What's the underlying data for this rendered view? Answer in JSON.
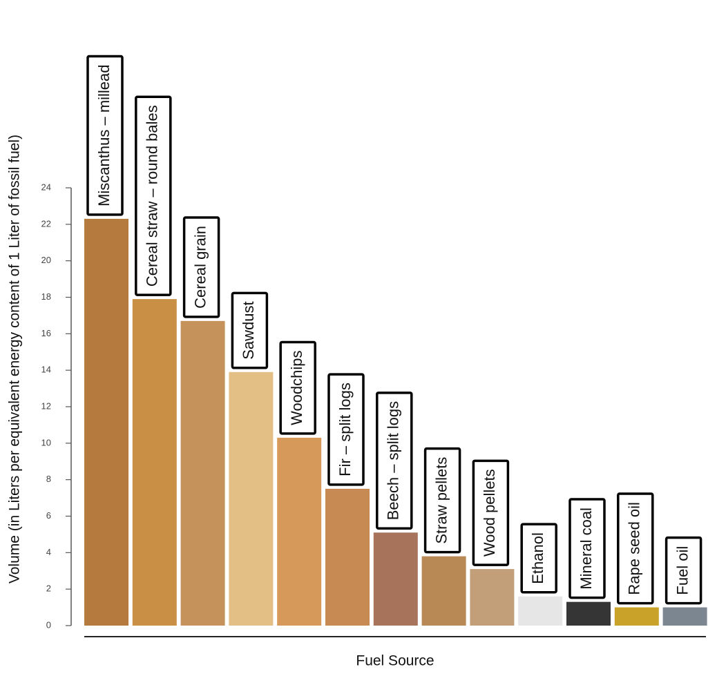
{
  "chart_data": {
    "type": "bar",
    "y_label": "Volume (in Liters per equivalent energy content of 1 Liter of fossil fuel)",
    "x_label": "Fuel Source",
    "categories": [
      "Miscanthus – millead",
      "Cereal straw – round bales",
      "Cereal grain",
      "Sawdust",
      "Woodchips",
      "Fir – split logs",
      "Beech – split logs",
      "Straw pellets",
      "Wood pellets",
      "Ethanol",
      "Mineral coal",
      "Rape seed oil",
      "Fuel oil"
    ],
    "values": [
      22.3,
      17.9,
      16.7,
      13.9,
      10.3,
      7.5,
      5.1,
      3.8,
      3.1,
      1.6,
      1.3,
      1.0,
      1.0
    ],
    "colors": [
      "#b47a3e",
      "#c98f45",
      "#c6925c",
      "#e4bf85",
      "#d7995a",
      "#c78a52",
      "#a7735a",
      "#b88955",
      "#c29f79",
      "#e6e6e6",
      "#353535",
      "#c9a22a",
      "#7b8690"
    ],
    "ylim": [
      0,
      24
    ],
    "yticks": [
      0,
      2,
      4,
      6,
      8,
      10,
      12,
      14,
      16,
      18,
      20,
      22,
      24
    ]
  }
}
